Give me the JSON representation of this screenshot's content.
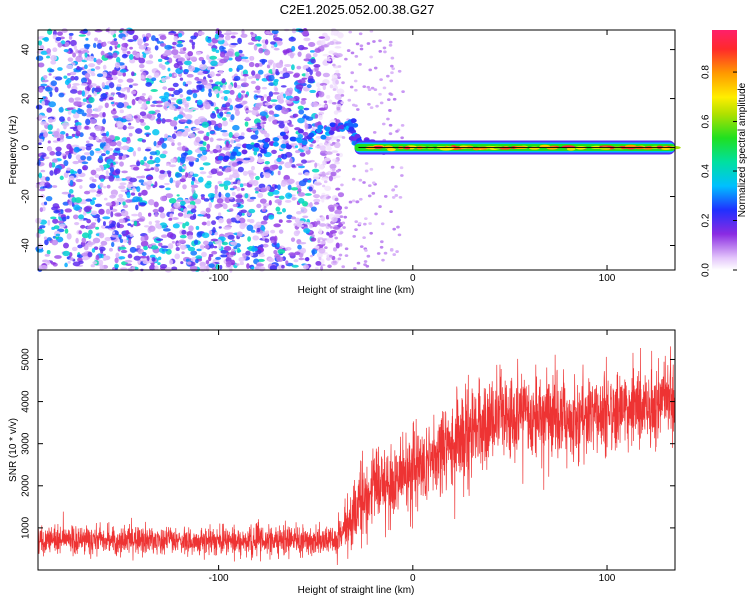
{
  "title": "C2E1.2025.052.00.38.G27",
  "colors": {
    "signal": "#ee3333",
    "frame": "#000000",
    "background": "#ffffff"
  },
  "chart_data": [
    {
      "type": "heatmap",
      "title": "C2E1.2025.052.00.38.G27",
      "xlabel": "Height of straight line (km)",
      "ylabel": "Frequency (Hz)",
      "xlim": [
        -193,
        135
      ],
      "ylim": [
        -50,
        48
      ],
      "xticks": [
        -100,
        0,
        100
      ],
      "xtick_labels": [
        "-100",
        "0",
        "100"
      ],
      "yticks": [
        -40,
        -20,
        0,
        20,
        40
      ],
      "ytick_labels": [
        "-40",
        "-20",
        "0",
        "20",
        "40"
      ],
      "grid": false,
      "colorbar": {
        "label": "Normalized spectral amplitude",
        "range": [
          0,
          0.97
        ],
        "ticks": [
          0,
          0.2,
          0.4,
          0.6,
          0.8
        ],
        "tick_labels": [
          "0.0",
          "0.2",
          "0.4",
          "0.6",
          "0.8"
        ],
        "colormap": "rainbow (white-purple-blue-cyan-green-yellow-orange-red-pink)"
      },
      "features": {
        "noise_region_x": [
          -193,
          -45
        ],
        "noise_amplitude": [
          0.05,
          0.45
        ],
        "transition_track": [
          {
            "x": -100,
            "y": -5
          },
          {
            "x": -80,
            "y": 0
          },
          {
            "x": -65,
            "y": 3
          },
          {
            "x": -50,
            "y": 6
          },
          {
            "x": -38,
            "y": 8
          },
          {
            "x": -32,
            "y": 10
          },
          {
            "x": -30,
            "y": 4
          },
          {
            "x": -25,
            "y": 1
          },
          {
            "x": -15,
            "y": 0
          }
        ],
        "carrier_frequency_hz": 0,
        "carrier_x_range": [
          -30,
          135
        ],
        "carrier_peak_amplitude": 0.95
      }
    },
    {
      "type": "line",
      "xlabel": "Height of straight line (km)",
      "ylabel": "SNR (10 * v/v)",
      "xlim": [
        -193,
        135
      ],
      "ylim": [
        0,
        5700
      ],
      "xticks": [
        -100,
        0,
        100
      ],
      "xtick_labels": [
        "-100",
        "0",
        "100"
      ],
      "yticks": [
        1000,
        2000,
        3000,
        4000,
        5000
      ],
      "ytick_labels": [
        "1000",
        "2000",
        "3000",
        "4000",
        "5000"
      ],
      "grid": false,
      "color": "#ee3333",
      "trend": {
        "x": [
          -193,
          -150,
          -100,
          -60,
          -40,
          -35,
          -28,
          -20,
          -10,
          0,
          10,
          20,
          30,
          45,
          60,
          80,
          100,
          120,
          135
        ],
        "y": [
          700,
          700,
          680,
          700,
          680,
          900,
          1500,
          2000,
          2100,
          2400,
          2600,
          2900,
          3300,
          3600,
          3600,
          3600,
          3700,
          3900,
          4200
        ]
      },
      "noise_spread": {
        "x": [
          -193,
          -40,
          -30,
          0,
          40,
          135
        ],
        "y": [
          300,
          300,
          800,
          900,
          900,
          900
        ]
      },
      "sample_count": 3200
    }
  ]
}
